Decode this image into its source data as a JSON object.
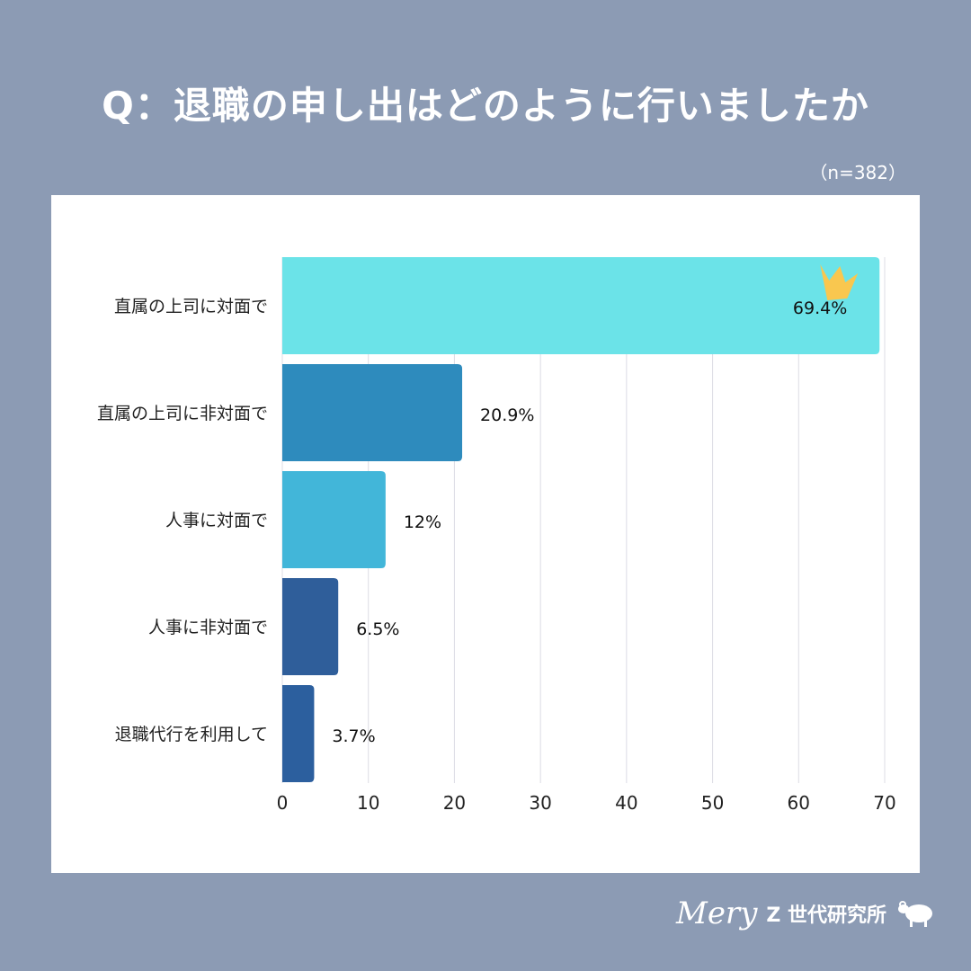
{
  "title": "Q：退職の申し出はどのように行いましたか",
  "sample_size": "（n=382）",
  "logo": {
    "script": "Mery",
    "label": "Z 世代研究所",
    "icon": "sheep-icon"
  },
  "chart_data": {
    "type": "bar",
    "orientation": "horizontal",
    "categories": [
      "直属の上司に対面で",
      "直属の上司に非対面で",
      "人事に対面で",
      "人事に非対面で",
      "退職代行を利用して"
    ],
    "values": [
      69.4,
      20.9,
      12,
      6.5,
      3.7
    ],
    "data_labels": [
      "69.4%",
      "20.9%",
      "12%",
      "6.5%",
      "3.7%"
    ],
    "colors": [
      "#6be3e8",
      "#2e8bbd",
      "#42b6d9",
      "#2f5e9a",
      "#2c5f9e"
    ],
    "xlim": [
      0,
      70
    ],
    "xticks": [
      0,
      10,
      20,
      30,
      40,
      50,
      60,
      70
    ],
    "grid": true,
    "highlight_icon": "crown-icon",
    "highlight_color": "#f9c74f"
  }
}
